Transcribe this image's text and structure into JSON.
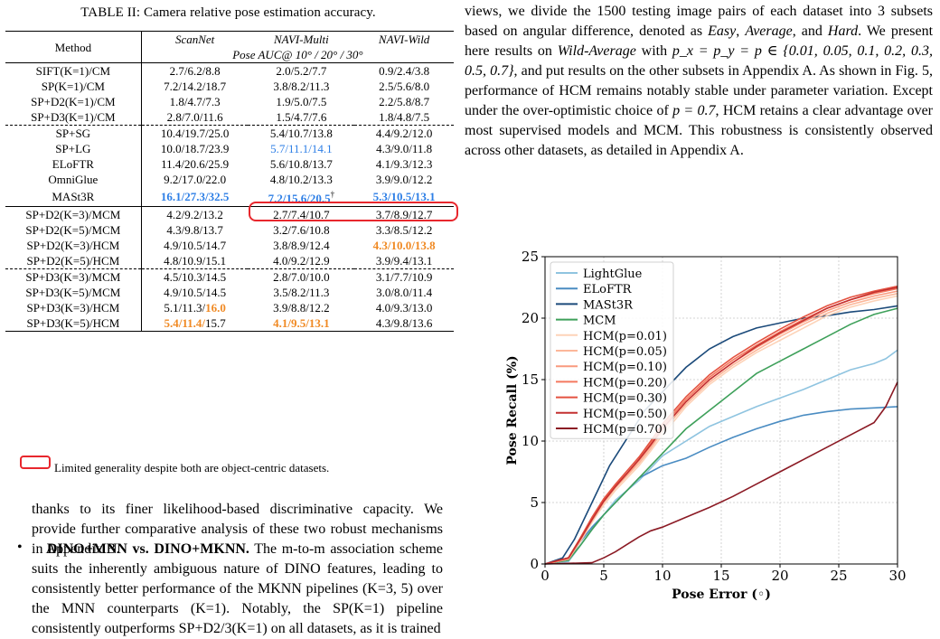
{
  "caption": "TABLE II: Camera relative pose estimation accuracy.",
  "table": {
    "header_method": "Method",
    "datasets": [
      "ScanNet",
      "NAVI-Multi",
      "NAVI-Wild"
    ],
    "subheader": "Pose AUC@ 10° / 20° / 30°",
    "rows": [
      {
        "method": "SIFT(K=1)/CM",
        "v": [
          "2.7/6.2/8.8",
          "2.0/5.2/7.7",
          "0.9/2.4/3.8"
        ]
      },
      {
        "method": "SP(K=1)/CM",
        "v": [
          "7.2/14.2/18.7",
          "3.8/8.2/11.3",
          "2.5/5.6/8.0"
        ]
      },
      {
        "method": "SP+D2(K=1)/CM",
        "v": [
          "1.8/4.7/7.3",
          "1.9/5.0/7.5",
          "2.2/5.8/8.7"
        ]
      },
      {
        "method": "SP+D3(K=1)/CM",
        "v": [
          "2.8/7.0/11.6",
          "1.5/4.7/7.6",
          "1.8/4.8/7.5"
        ]
      },
      {
        "method": "SP+SG",
        "v": [
          "10.4/19.7/25.0",
          "5.4/10.7/13.8",
          "4.4/9.2/12.0"
        ]
      },
      {
        "method": "SP+LG",
        "v": [
          "10.0/18.7/23.9",
          "5.7/11.1/14.1",
          "4.3/9.0/11.8"
        ]
      },
      {
        "method": "ELoFTR",
        "v": [
          "11.4/20.6/25.9",
          "5.6/10.8/13.7",
          "4.1/9.3/12.3"
        ]
      },
      {
        "method": "OmniGlue",
        "v": [
          "9.2/17.0/22.0",
          "4.8/10.2/13.3",
          "3.9/9.0/12.2"
        ]
      },
      {
        "method": "MASt3R",
        "v": [
          "16.1/27.3/32.5",
          "7.2/15.6/20.5",
          "5.3/10.5/13.1"
        ],
        "dagger": "†"
      },
      {
        "method": "SP+D2(K=3)/MCM",
        "v": [
          "4.2/9.2/13.2",
          "2.7/7.4/10.7",
          "3.7/8.9/12.7"
        ]
      },
      {
        "method": "SP+D2(K=5)/MCM",
        "v": [
          "4.3/9.8/13.7",
          "3.2/7.6/10.8",
          "3.3/8.5/12.2"
        ]
      },
      {
        "method": "SP+D2(K=3)/HCM",
        "v": [
          "4.9/10.5/14.7",
          "3.8/8.9/12.4",
          "4.3/10.0/13.8"
        ]
      },
      {
        "method": "SP+D2(K=5)/HCM",
        "v": [
          "4.8/10.9/15.1",
          "4.0/9.2/12.9",
          "3.9/9.4/13.1"
        ]
      },
      {
        "method": "SP+D3(K=3)/MCM",
        "v": [
          "4.5/10.3/14.5",
          "2.8/7.0/10.0",
          "3.1/7.7/10.9"
        ]
      },
      {
        "method": "SP+D3(K=5)/MCM",
        "v": [
          "4.9/10.5/14.5",
          "3.5/8.2/11.3",
          "3.0/8.0/11.4"
        ]
      },
      {
        "method": "SP+D3(K=3)/HCM",
        "v": [
          "5.1/11.3/",
          "3.9/8.8/12.2",
          "4.0/9.3/13.0"
        ],
        "v0b": "16.0"
      },
      {
        "method": "SP+D3(K=5)/HCM",
        "v": [
          "5.4/11.4/",
          "4.1/9.5/13.1",
          "4.3/9.8/13.6"
        ],
        "v0b": "15.7"
      }
    ]
  },
  "legend_note": "Limited generality despite both are object-centric datasets.",
  "p1": "thanks to its finer likelihood-based discriminative capacity. We provide further comparative analysis of these two robust mechanisms in Appendix B.",
  "bullet": "•",
  "p2_head": "DINO+MNN vs. DINO+MKNN.",
  "p2_body": " The m-to-m association scheme suits the inherently ambiguous nature of DINO features, leading to consistently better performance of the MKNN pipelines (K=3, 5) over the MNN counterparts (K=1). Notably, the SP(K=1) pipeline consistently outperforms SP+D2/3(K=1) on all datasets, as it is trained",
  "p3": {
    "a": "views, we divide the 1500 testing image pairs of each dataset into 3 subsets based on angular difference, denoted as ",
    "easy": "Easy",
    "b": ", ",
    "average": "Average",
    "c": ", and ",
    "hard": "Hard",
    "d": ". We present here results on ",
    "wild": "Wild-Average",
    "e": " with ",
    "math": "p_x = p_y = p ∈ {0.01, 0.05, 0.1, 0.2, 0.3, 0.5, 0.7}",
    "f": ", and put results on the other subsets in Appendix A. As shown in Fig. 5, performance of HCM remains notably stable under parameter variation. Except under the over-optimistic choice of ",
    "math2": "p = 0.7",
    "g": ", HCM retains a clear advantage over most supervised models and MCM. This robustness is consistently observed across other datasets, as detailed in Appendix A."
  },
  "colors": {
    "blue": "#2e7fe6",
    "orange": "#f08a24",
    "box": "#e8272d"
  },
  "chart_data": {
    "type": "line",
    "xlabel": "Pose Error (◦)",
    "ylabel": "Pose Recall (%)",
    "xlim": [
      0,
      30
    ],
    "ylim": [
      0,
      25
    ],
    "xticks": [
      0,
      5,
      10,
      15,
      20,
      25,
      30
    ],
    "yticks": [
      0,
      5,
      10,
      15,
      20,
      25
    ],
    "grid": true,
    "legend_position": "top-left",
    "series": [
      {
        "name": "LightGlue",
        "color": "#8fc4e0",
        "x": [
          0,
          2,
          3,
          4,
          5,
          6,
          7,
          8,
          9,
          10,
          12,
          14,
          16,
          18,
          20,
          22,
          24,
          26,
          28,
          29,
          30
        ],
        "y": [
          0,
          0.2,
          1.5,
          2.8,
          4.0,
          5.2,
          6.0,
          6.8,
          7.8,
          8.8,
          10.0,
          11.2,
          12.0,
          12.8,
          13.5,
          14.2,
          15.0,
          15.8,
          16.3,
          16.7,
          17.4
        ]
      },
      {
        "name": "ELoFTR",
        "color": "#4a8cc2",
        "x": [
          0,
          2,
          3,
          4,
          5,
          6,
          7,
          8,
          9,
          10,
          12,
          14,
          16,
          18,
          20,
          22,
          24,
          26,
          28,
          30
        ],
        "y": [
          0,
          0.3,
          1.8,
          3.0,
          4.0,
          5.0,
          6.0,
          7.0,
          7.5,
          8.0,
          8.6,
          9.5,
          10.3,
          11.0,
          11.6,
          12.1,
          12.4,
          12.6,
          12.7,
          12.8
        ]
      },
      {
        "name": "MASt3R",
        "color": "#1b4a7a",
        "x": [
          0,
          1.5,
          2.5,
          3.5,
          4.5,
          5.5,
          6.5,
          7.5,
          8.5,
          10,
          12,
          14,
          16,
          18,
          20,
          22,
          24,
          26,
          28,
          30
        ],
        "y": [
          0,
          0.5,
          2.0,
          4.0,
          6.0,
          8.0,
          9.5,
          11.0,
          12.5,
          14.0,
          16.0,
          17.5,
          18.5,
          19.2,
          19.6,
          20.0,
          20.2,
          20.5,
          20.7,
          21.0
        ]
      },
      {
        "name": "MCM",
        "color": "#3ea05a",
        "x": [
          0,
          2,
          3,
          4,
          5,
          6,
          7,
          8,
          9,
          10,
          12,
          14,
          16,
          18,
          20,
          22,
          24,
          26,
          28,
          30
        ],
        "y": [
          0,
          0.3,
          1.5,
          2.8,
          4.0,
          5.0,
          6.0,
          7.0,
          8.0,
          9.0,
          11.0,
          12.5,
          14.0,
          15.5,
          16.5,
          17.5,
          18.5,
          19.5,
          20.3,
          20.8
        ]
      },
      {
        "name": "HCM(p=0.01)",
        "color": "#fdd3b8",
        "x": [
          0,
          2,
          3,
          4,
          5,
          6,
          7,
          8,
          9,
          10,
          12,
          14,
          16,
          18,
          20,
          22,
          24,
          26,
          28,
          30
        ],
        "y": [
          0,
          0.4,
          1.8,
          3.4,
          4.8,
          6.0,
          7.0,
          8.0,
          9.2,
          10.5,
          12.8,
          14.6,
          16.0,
          17.2,
          18.2,
          19.2,
          20.2,
          20.9,
          21.4,
          21.8
        ]
      },
      {
        "name": "HCM(p=0.05)",
        "color": "#fcb79a",
        "x": [
          0,
          2,
          3,
          4,
          5,
          6,
          7,
          8,
          9,
          10,
          12,
          14,
          16,
          18,
          20,
          22,
          24,
          26,
          28,
          30
        ],
        "y": [
          0,
          0.4,
          1.9,
          3.5,
          5.0,
          6.2,
          7.2,
          8.2,
          9.4,
          10.8,
          13.0,
          14.8,
          16.2,
          17.4,
          18.5,
          19.5,
          20.4,
          21.1,
          21.6,
          22.0
        ]
      },
      {
        "name": "HCM(p=0.10)",
        "color": "#f99a7f",
        "x": [
          0,
          2,
          3,
          4,
          5,
          6,
          7,
          8,
          9,
          10,
          12,
          14,
          16,
          18,
          20,
          22,
          24,
          26,
          28,
          30
        ],
        "y": [
          0,
          0.4,
          2.0,
          3.6,
          5.1,
          6.3,
          7.3,
          8.4,
          9.6,
          11.0,
          13.2,
          15.0,
          16.4,
          17.6,
          18.7,
          19.7,
          20.6,
          21.3,
          21.8,
          22.2
        ]
      },
      {
        "name": "HCM(p=0.20)",
        "color": "#f4795f",
        "x": [
          0,
          2,
          3,
          4,
          5,
          6,
          7,
          8,
          9,
          10,
          12,
          14,
          16,
          18,
          20,
          22,
          24,
          26,
          28,
          30
        ],
        "y": [
          0,
          0.5,
          2.1,
          3.7,
          5.2,
          6.4,
          7.4,
          8.5,
          9.8,
          11.2,
          13.4,
          15.2,
          16.6,
          17.8,
          18.9,
          19.9,
          20.8,
          21.5,
          22.0,
          22.4
        ]
      },
      {
        "name": "HCM(p=0.30)",
        "color": "#e45240",
        "x": [
          0,
          2,
          3,
          4,
          5,
          6,
          7,
          8,
          9,
          10,
          12,
          14,
          16,
          18,
          20,
          22,
          24,
          26,
          28,
          30
        ],
        "y": [
          0,
          0.5,
          2.1,
          3.8,
          5.3,
          6.5,
          7.6,
          8.7,
          10.0,
          11.4,
          13.6,
          15.4,
          16.8,
          18.0,
          19.1,
          20.1,
          21.0,
          21.7,
          22.2,
          22.6
        ]
      },
      {
        "name": "HCM(p=0.50)",
        "color": "#c43030",
        "x": [
          0,
          2,
          3,
          4,
          5,
          6,
          7,
          8,
          9,
          10,
          12,
          14,
          16,
          18,
          20,
          22,
          24,
          26,
          28,
          30
        ],
        "y": [
          0,
          0.5,
          2.0,
          3.6,
          5.1,
          6.3,
          7.4,
          8.5,
          9.7,
          11.0,
          13.2,
          15.0,
          16.4,
          17.7,
          18.8,
          19.8,
          20.8,
          21.5,
          22.1,
          22.5
        ]
      },
      {
        "name": "HCM(p=0.70)",
        "color": "#8b1a24",
        "x": [
          0,
          4,
          5,
          6,
          7,
          8,
          9,
          10,
          12,
          14,
          16,
          18,
          20,
          22,
          24,
          26,
          28,
          29,
          30
        ],
        "y": [
          0,
          0.1,
          0.5,
          1.0,
          1.6,
          2.2,
          2.7,
          3.0,
          3.8,
          4.6,
          5.5,
          6.5,
          7.5,
          8.5,
          9.5,
          10.5,
          11.5,
          12.8,
          14.8
        ]
      }
    ]
  }
}
